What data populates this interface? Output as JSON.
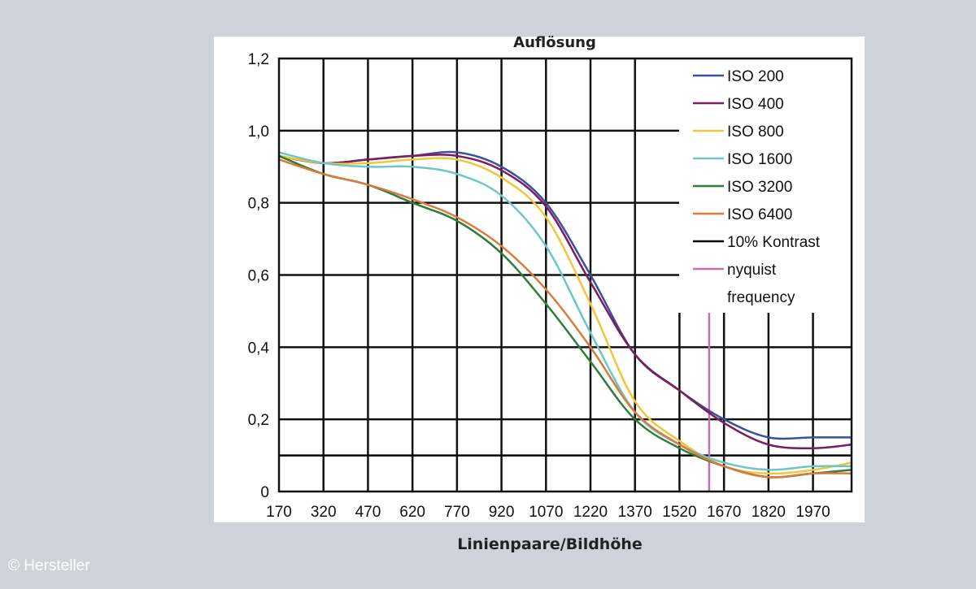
{
  "credit": "© Hersteller",
  "chart_data": {
    "type": "line",
    "title": "Auflösung",
    "xlabel": "Linienpaare/Bildhöhe",
    "ylabel": "",
    "x_ticks": [
      170,
      320,
      470,
      620,
      770,
      920,
      1070,
      1220,
      1370,
      1520,
      1670,
      1820,
      1970
    ],
    "y_ticks": [
      0,
      0.2,
      0.4,
      0.6,
      0.8,
      1.0,
      1.2
    ],
    "y_tick_labels": [
      "0",
      "0,2",
      "0,4",
      "0,6",
      "0,8",
      "1,0",
      "1,2"
    ],
    "xlim": [
      170,
      2100
    ],
    "ylim": [
      0,
      1.2
    ],
    "grid": true,
    "legend_position": "top-right",
    "x": [
      170,
      320,
      470,
      620,
      770,
      920,
      1070,
      1220,
      1370,
      1520,
      1670,
      1820,
      1970,
      2100
    ],
    "series": [
      {
        "name": "ISO 200",
        "color": "#3c4fa0",
        "values": [
          0.93,
          0.91,
          0.92,
          0.93,
          0.94,
          0.9,
          0.8,
          0.6,
          0.38,
          0.28,
          0.2,
          0.15,
          0.15,
          0.15
        ]
      },
      {
        "name": "ISO 400",
        "color": "#7a1e5c",
        "values": [
          0.93,
          0.91,
          0.92,
          0.93,
          0.93,
          0.89,
          0.79,
          0.58,
          0.38,
          0.28,
          0.19,
          0.13,
          0.12,
          0.13
        ]
      },
      {
        "name": "ISO 800",
        "color": "#f2c63a",
        "values": [
          0.93,
          0.91,
          0.91,
          0.92,
          0.92,
          0.87,
          0.76,
          0.52,
          0.25,
          0.14,
          0.07,
          0.05,
          0.06,
          0.08
        ]
      },
      {
        "name": "ISO 1600",
        "color": "#6ec6c8",
        "values": [
          0.94,
          0.91,
          0.9,
          0.9,
          0.88,
          0.82,
          0.68,
          0.44,
          0.22,
          0.13,
          0.08,
          0.06,
          0.07,
          0.07
        ]
      },
      {
        "name": "ISO 3200",
        "color": "#2e7d3a",
        "values": [
          0.93,
          0.88,
          0.85,
          0.8,
          0.75,
          0.66,
          0.52,
          0.36,
          0.2,
          0.12,
          0.07,
          0.04,
          0.05,
          0.06
        ]
      },
      {
        "name": "ISO 6400",
        "color": "#d97b3a",
        "values": [
          0.92,
          0.88,
          0.85,
          0.81,
          0.76,
          0.68,
          0.56,
          0.4,
          0.22,
          0.13,
          0.07,
          0.04,
          0.05,
          0.05
        ]
      }
    ],
    "reference_lines": [
      {
        "name": "10% Kontrast",
        "color": "#000000",
        "orientation": "horizontal",
        "value": 0.1
      },
      {
        "name": "nyquist frequency",
        "color": "#c46fb0",
        "orientation": "vertical",
        "value": 1620
      }
    ]
  }
}
